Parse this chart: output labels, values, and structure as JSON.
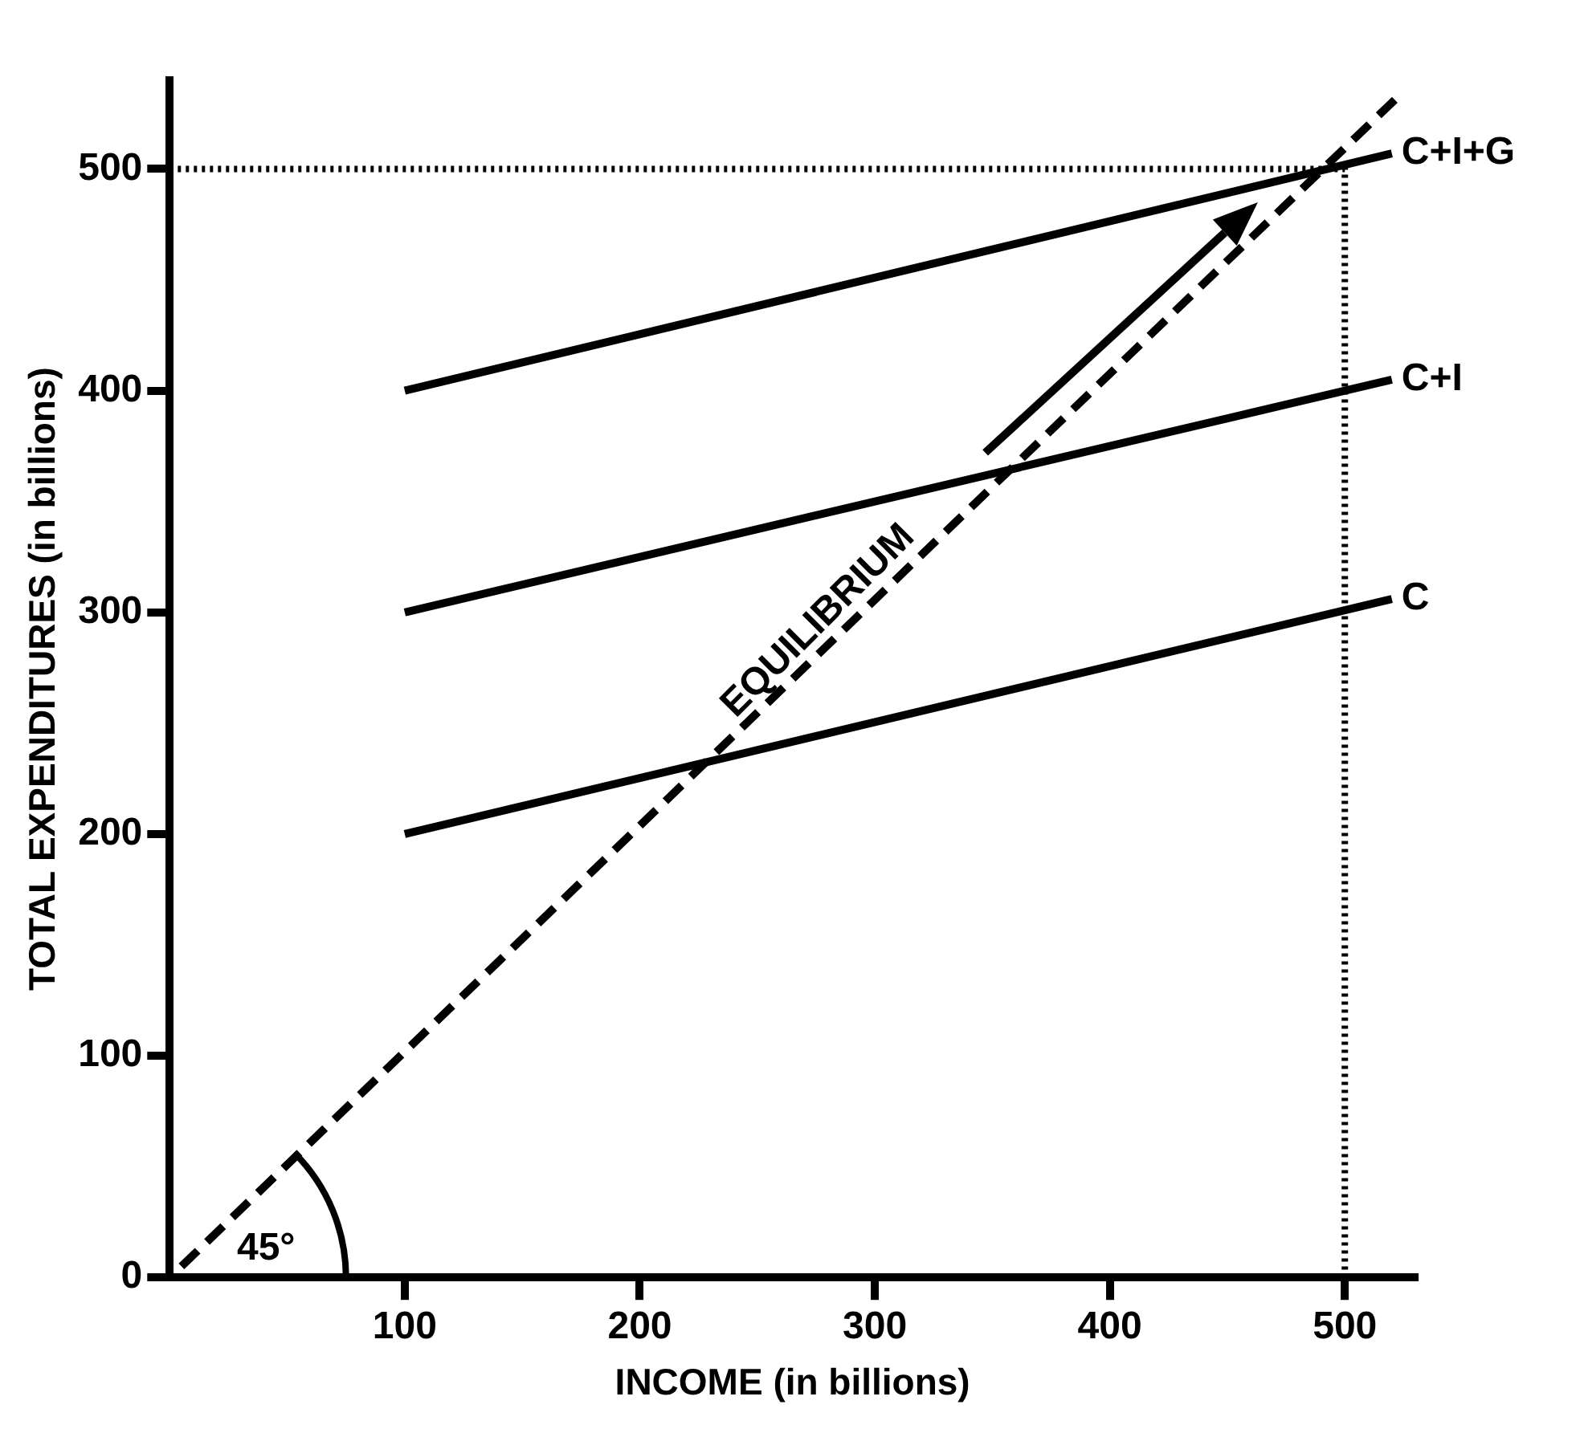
{
  "chart_data": {
    "type": "line",
    "xlabel": "INCOME (in billions)",
    "ylabel": "TOTAL EXPENDITURES (in billions)",
    "xlim": [
      0,
      530
    ],
    "ylim": [
      0,
      540
    ],
    "xticks": [
      100,
      200,
      300,
      400,
      500
    ],
    "yticks": [
      0,
      100,
      200,
      300,
      400,
      500
    ],
    "grid": false,
    "legend": false,
    "marker": "none",
    "series": [
      {
        "name": "C",
        "color": "#000000",
        "x": [
          100,
          520
        ],
        "values": [
          200,
          306
        ]
      },
      {
        "name": "C+I",
        "color": "#000000",
        "x": [
          100,
          520
        ],
        "values": [
          300,
          405
        ]
      },
      {
        "name": "C+I+G",
        "color": "#000000",
        "x": [
          100,
          520
        ],
        "values": [
          400,
          507
        ]
      },
      {
        "color": "#000000",
        "line_style": "dashed",
        "x": [
          5,
          525
        ],
        "values": [
          5,
          535
        ]
      },
      {
        "color": "#000000",
        "line_style": "dotted",
        "x": [
          0,
          500,
          500
        ],
        "values": [
          500,
          500,
          0
        ]
      }
    ],
    "annotations": [
      "EQUILIBRIUM",
      "45°"
    ]
  }
}
